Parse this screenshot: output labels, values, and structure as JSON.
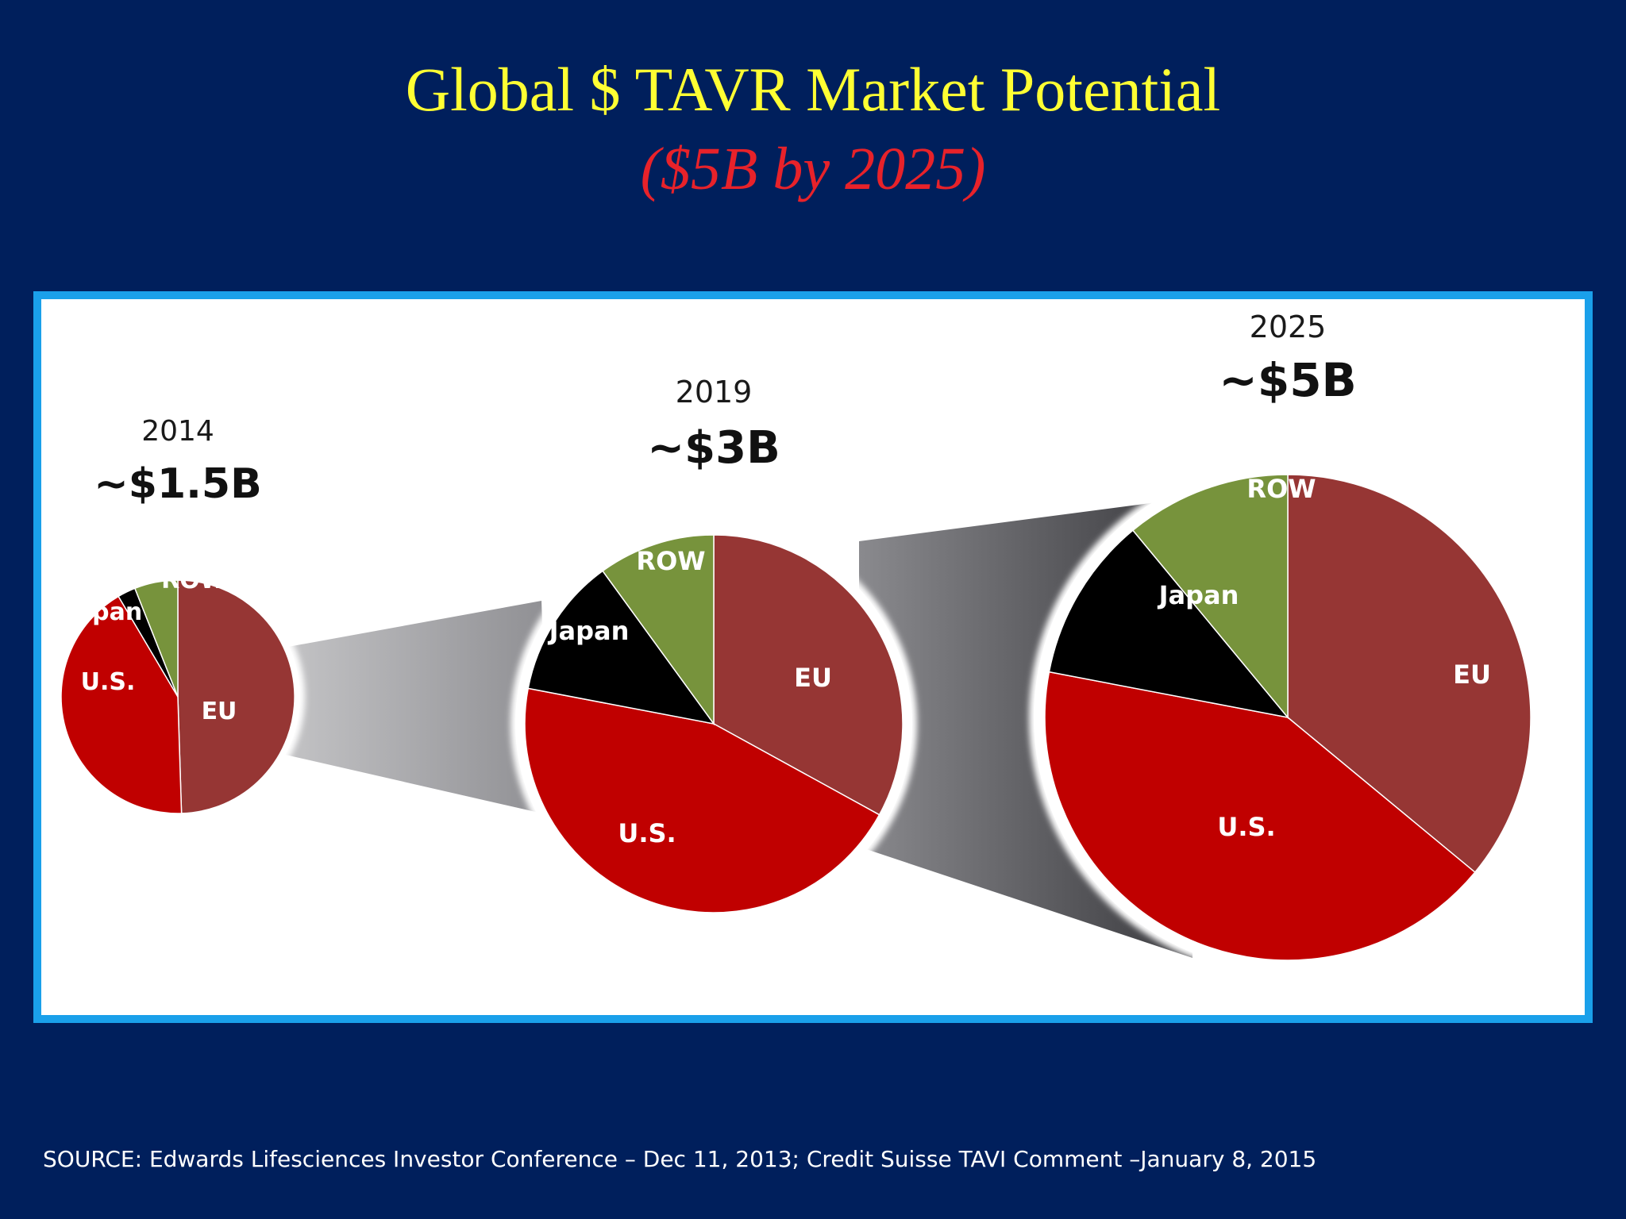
{
  "title": "Global $ TAVR Market Potential",
  "subtitle": "($5B by 2025)",
  "source": "SOURCE: Edwards Lifesciences Investor Conference – Dec 11, 2013; Credit Suisse TAVI Comment –January 8, 2015",
  "colors": {
    "background": "#001f5c",
    "title": "#ffff33",
    "subtitle": "#e8222a",
    "panel_border": "#1aa0ea",
    "EU": "#963634",
    "U.S.": "#c00000",
    "Japan": "#000000",
    "ROW": "#77933c"
  },
  "chart_data": [
    {
      "type": "pie",
      "year": "2014",
      "total_label": "~$1.5B",
      "slices": [
        {
          "label": "EU",
          "percent": 49.5
        },
        {
          "label": "U.S.",
          "percent": 42
        },
        {
          "label": "Japan",
          "percent": 2.5
        },
        {
          "label": "ROW",
          "percent": 6
        }
      ]
    },
    {
      "type": "pie",
      "year": "2019",
      "total_label": "~$3B",
      "slices": [
        {
          "label": "EU",
          "percent": 33
        },
        {
          "label": "U.S.",
          "percent": 45
        },
        {
          "label": "Japan",
          "percent": 12
        },
        {
          "label": "ROW",
          "percent": 10
        }
      ]
    },
    {
      "type": "pie",
      "year": "2025",
      "total_label": "~$5B",
      "slices": [
        {
          "label": "EU",
          "percent": 36
        },
        {
          "label": "U.S.",
          "percent": 42
        },
        {
          "label": "Japan",
          "percent": 11
        },
        {
          "label": "ROW",
          "percent": 11
        }
      ]
    }
  ]
}
